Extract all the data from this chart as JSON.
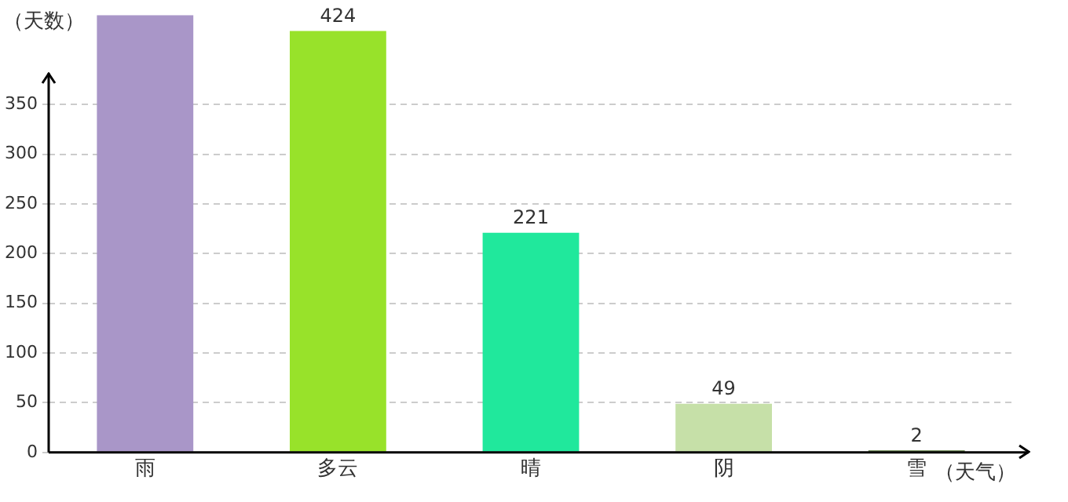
{
  "chart_data": {
    "type": "bar",
    "ylabel": "（天数）",
    "xlabel": "（天气）",
    "categories": [
      "雨",
      "多云",
      "晴",
      "阴",
      "雪"
    ],
    "values": [
      440,
      424,
      221,
      49,
      2
    ],
    "colors": [
      "#a996c8",
      "#98e22a",
      "#20e89c",
      "#c6e0a8",
      "#4e6e2e"
    ],
    "value_labels": [
      null,
      "424",
      "221",
      "49",
      "2"
    ],
    "ylim": [
      0,
      440
    ],
    "yticks": [
      0,
      50,
      100,
      150,
      200,
      250,
      300,
      350
    ],
    "grid": "y",
    "legend": false
  }
}
